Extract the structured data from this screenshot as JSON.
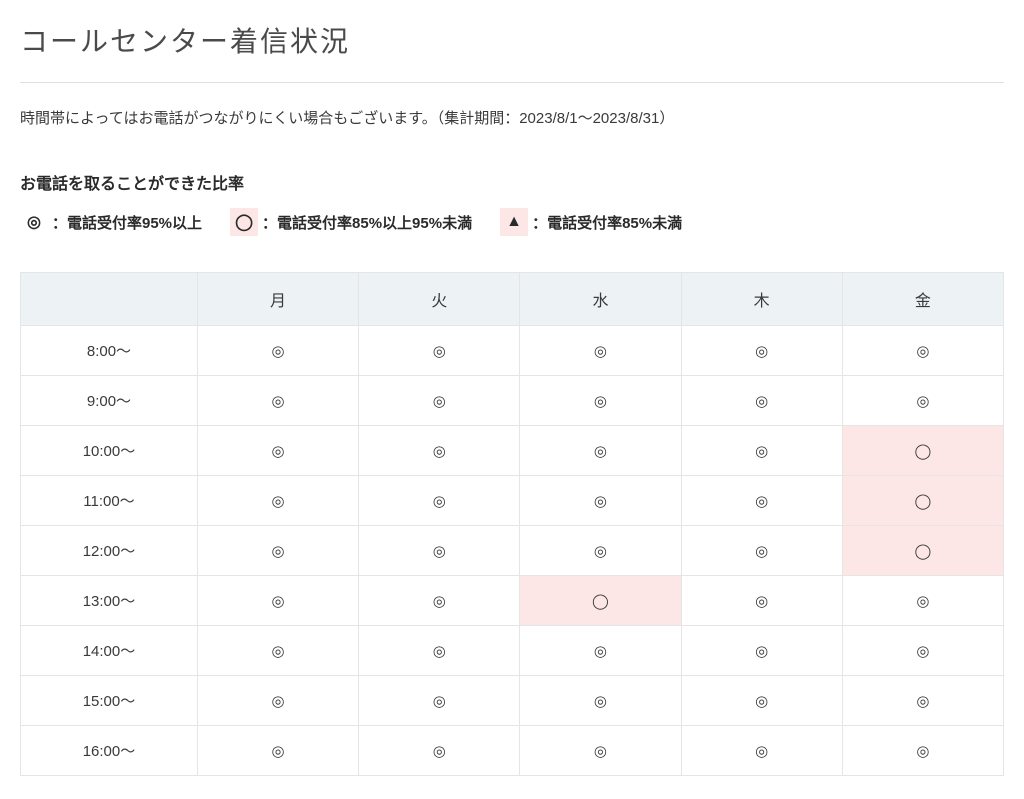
{
  "title": "コールセンター着信状況",
  "subtitle": "時間帯によってはお電話がつながりにくい場合もございます。（集計期間：2023/8/1〜2023/8/31）",
  "legend": {
    "heading": "お電話を取ることができた比率",
    "items": [
      {
        "symbol": "◎",
        "label": "：電話受付率95%以上",
        "bg": false
      },
      {
        "symbol": "◯",
        "label": "：電話受付率85%以上95%未満",
        "bg": true
      },
      {
        "symbol": "▲",
        "label": "：電話受付率85%未満",
        "bg": true
      }
    ]
  },
  "table": {
    "headers": [
      "",
      "月",
      "火",
      "水",
      "木",
      "金"
    ],
    "time_slots": [
      "8:00〜",
      "9:00〜",
      "10:00〜",
      "11:00〜",
      "12:00〜",
      "13:00〜",
      "14:00〜",
      "15:00〜",
      "16:00〜"
    ],
    "symbols": {
      "high": "◎",
      "mid": "◯",
      "low": "▲"
    },
    "colors": {
      "header_bg": "#edf3f5",
      "mid_bg": "#fce6e6",
      "low_bg": "#fce6e6",
      "border": "#e5e5e5"
    },
    "cells": [
      [
        "high",
        "high",
        "high",
        "high",
        "high"
      ],
      [
        "high",
        "high",
        "high",
        "high",
        "high"
      ],
      [
        "high",
        "high",
        "high",
        "high",
        "mid"
      ],
      [
        "high",
        "high",
        "high",
        "high",
        "mid"
      ],
      [
        "high",
        "high",
        "high",
        "high",
        "mid"
      ],
      [
        "high",
        "high",
        "mid",
        "high",
        "high"
      ],
      [
        "high",
        "high",
        "high",
        "high",
        "high"
      ],
      [
        "high",
        "high",
        "high",
        "high",
        "high"
      ],
      [
        "high",
        "high",
        "high",
        "high",
        "high"
      ]
    ]
  }
}
